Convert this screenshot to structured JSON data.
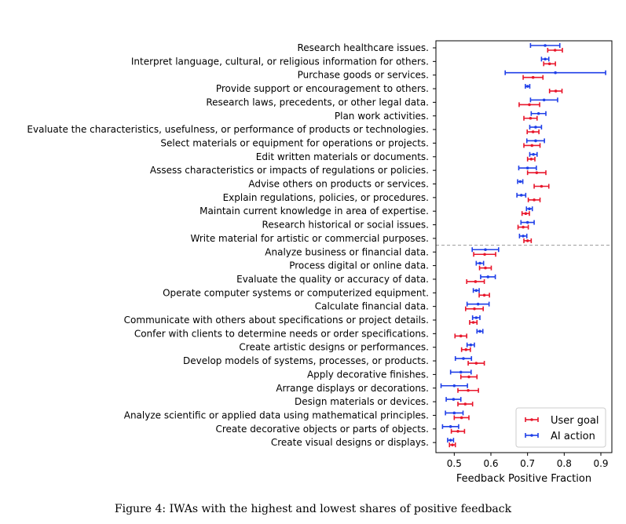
{
  "chart_data": {
    "type": "errorbar",
    "orientation": "horizontal",
    "xlabel": "Feedback Positive Fraction",
    "xlim": [
      0.45,
      0.93
    ],
    "xticks": [
      "0.5",
      "0.6",
      "0.7",
      "0.8",
      "0.9"
    ],
    "xtick_values": [
      0.5,
      0.6,
      0.7,
      0.8,
      0.9
    ],
    "grid": false,
    "legend_position": "lower-right",
    "divider_after_index": 14,
    "categories": [
      "Research healthcare issues.",
      "Interpret language, cultural, or religious information for others.",
      "Purchase goods or services.",
      "Provide support or encouragement to others.",
      "Research laws, precedents, or other legal data.",
      "Plan work activities.",
      "Evaluate the characteristics, usefulness, or performance of products or technologies.",
      "Select materials or equipment for operations or projects.",
      "Edit written materials or documents.",
      "Assess characteristics or impacts of regulations or policies.",
      "Advise others on products or services.",
      "Explain regulations, policies, or procedures.",
      "Maintain current knowledge in area of expertise.",
      "Research historical or social issues.",
      "Write material for artistic or commercial purposes.",
      "Analyze business or financial data.",
      "Process digital or online data.",
      "Evaluate the quality or accuracy of data.",
      "Operate computer systems or computerized equipment.",
      "Calculate financial data.",
      "Communicate with others about specifications or project details.",
      "Confer with clients to determine needs or order specifications.",
      "Create artistic designs or performances.",
      "Develop models of systems, processes, or products.",
      "Apply decorative finishes.",
      "Arrange displays or decorations.",
      "Design materials or devices.",
      "Analyze scientific or applied data using mathematical principles.",
      "Create decorative objects or parts of objects.",
      "Create visual designs or displays."
    ],
    "series": [
      {
        "name": "User goal",
        "color": "#e8162b",
        "values": [
          0.775,
          0.76,
          0.715,
          0.777,
          0.705,
          0.708,
          0.715,
          0.712,
          0.71,
          0.725,
          0.738,
          0.718,
          0.695,
          0.688,
          0.7,
          0.583,
          0.585,
          0.558,
          0.582,
          0.555,
          0.552,
          0.518,
          0.532,
          0.56,
          0.54,
          0.538,
          0.53,
          0.52,
          0.51,
          0.495
        ],
        "err": [
          0.02,
          0.016,
          0.027,
          0.017,
          0.028,
          0.018,
          0.016,
          0.022,
          0.01,
          0.025,
          0.02,
          0.016,
          0.01,
          0.014,
          0.01,
          0.03,
          0.016,
          0.024,
          0.014,
          0.024,
          0.01,
          0.016,
          0.012,
          0.022,
          0.022,
          0.028,
          0.02,
          0.02,
          0.018,
          0.008
        ]
      },
      {
        "name": "AI action",
        "color": "#1f3fe8",
        "values": [
          0.748,
          0.748,
          0.776,
          0.7,
          0.745,
          0.73,
          0.722,
          0.722,
          0.716,
          0.7,
          0.68,
          0.683,
          0.705,
          0.7,
          0.688,
          0.585,
          0.57,
          0.592,
          0.56,
          0.565,
          0.56,
          0.57,
          0.545,
          0.525,
          0.518,
          0.5,
          0.498,
          0.5,
          0.49,
          0.49
        ],
        "err": [
          0.04,
          0.01,
          0.137,
          0.006,
          0.037,
          0.02,
          0.016,
          0.024,
          0.01,
          0.024,
          0.007,
          0.012,
          0.008,
          0.018,
          0.01,
          0.036,
          0.01,
          0.02,
          0.008,
          0.03,
          0.01,
          0.008,
          0.01,
          0.022,
          0.028,
          0.036,
          0.02,
          0.024,
          0.022,
          0.008
        ]
      }
    ]
  },
  "caption": "Figure 4: IWAs with the highest and lowest shares of positive feedback"
}
